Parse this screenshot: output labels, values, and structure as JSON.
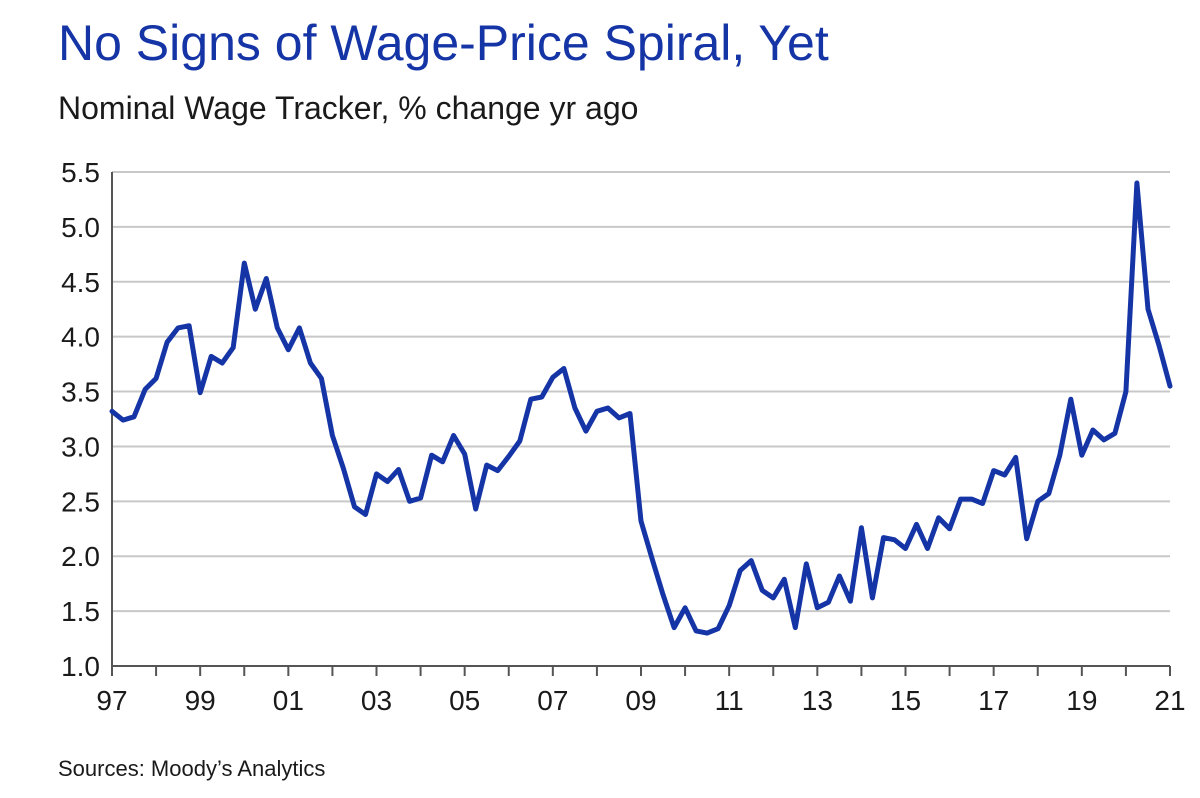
{
  "title": "No Signs of Wage-Price Spiral, Yet",
  "subtitle": "Nominal Wage Tracker, % change yr ago",
  "source": "Sources: Moody’s Analytics",
  "colors": {
    "title": "#1535a6",
    "line": "#1535a6",
    "grid": "#c8c8c8",
    "axis": "#555555"
  },
  "chart_data": {
    "type": "line",
    "title": "No Signs of Wage-Price Spiral, Yet",
    "subtitle": "Nominal Wage Tracker, % change yr ago",
    "xlim": [
      1997,
      2021
    ],
    "ylim": [
      1.0,
      5.5
    ],
    "yticks": [
      "1.0",
      "1.5",
      "2.0",
      "2.5",
      "3.0",
      "3.5",
      "4.0",
      "4.5",
      "5.0",
      "5.5"
    ],
    "xtick_labels": [
      "97",
      "99",
      "01",
      "03",
      "05",
      "07",
      "09",
      "11",
      "13",
      "15",
      "17",
      "19",
      "21"
    ],
    "grid": true,
    "series": [
      {
        "x": [
          1997.0,
          1997.25,
          1997.5,
          1997.75,
          1998.0,
          1998.25,
          1998.5,
          1998.75,
          1999.0,
          1999.25,
          1999.5,
          1999.75,
          2000.0,
          2000.25,
          2000.5,
          2000.75,
          2001.0,
          2001.25,
          2001.5,
          2001.75,
          2002.0,
          2002.25,
          2002.5,
          2002.75,
          2003.0,
          2003.25,
          2003.5,
          2003.75,
          2004.0,
          2004.25,
          2004.5,
          2004.75,
          2005.0,
          2005.25,
          2005.5,
          2005.75,
          2006.0,
          2006.25,
          2006.5,
          2006.75,
          2007.0,
          2007.25,
          2007.5,
          2007.75,
          2008.0,
          2008.25,
          2008.5,
          2008.75,
          2009.0,
          2009.25,
          2009.5,
          2009.75,
          2010.0,
          2010.25,
          2010.5,
          2010.75,
          2011.0,
          2011.25,
          2011.5,
          2011.75,
          2012.0,
          2012.25,
          2012.5,
          2012.75,
          2013.0,
          2013.25,
          2013.5,
          2013.75,
          2014.0,
          2014.25,
          2014.5,
          2014.75,
          2015.0,
          2015.25,
          2015.5,
          2015.75,
          2016.0,
          2016.25,
          2016.5,
          2016.75,
          2017.0,
          2017.25,
          2017.5,
          2017.75,
          2018.0,
          2018.25,
          2018.5,
          2018.75,
          2019.0,
          2019.25,
          2019.5,
          2019.75,
          2020.0,
          2020.25,
          2020.5,
          2020.75,
          2021.0
        ],
        "values": [
          3.32,
          3.24,
          3.27,
          3.52,
          3.62,
          3.95,
          4.08,
          4.1,
          3.49,
          3.82,
          3.76,
          3.9,
          4.67,
          4.25,
          4.53,
          4.08,
          3.88,
          4.08,
          3.76,
          3.62,
          3.1,
          2.8,
          2.45,
          2.38,
          2.75,
          2.68,
          2.79,
          2.5,
          2.53,
          2.92,
          2.86,
          3.1,
          2.93,
          2.43,
          2.83,
          2.78,
          2.91,
          3.05,
          3.43,
          3.45,
          3.63,
          3.71,
          3.35,
          3.14,
          3.32,
          3.35,
          3.26,
          3.3,
          2.32,
          1.98,
          1.65,
          1.35,
          1.53,
          1.32,
          1.3,
          1.34,
          1.55,
          1.87,
          1.96,
          1.69,
          1.62,
          1.79,
          1.35,
          1.93,
          1.53,
          1.58,
          1.82,
          1.59,
          2.26,
          1.62,
          2.17,
          2.15,
          2.07,
          2.29,
          2.07,
          2.35,
          2.25,
          2.52,
          2.52,
          2.48,
          2.78,
          2.74,
          2.9,
          2.16,
          2.5,
          2.57,
          2.92,
          3.43,
          2.92,
          3.15,
          3.06,
          3.12,
          3.5,
          5.4,
          4.25,
          3.92,
          3.55
        ]
      }
    ]
  }
}
